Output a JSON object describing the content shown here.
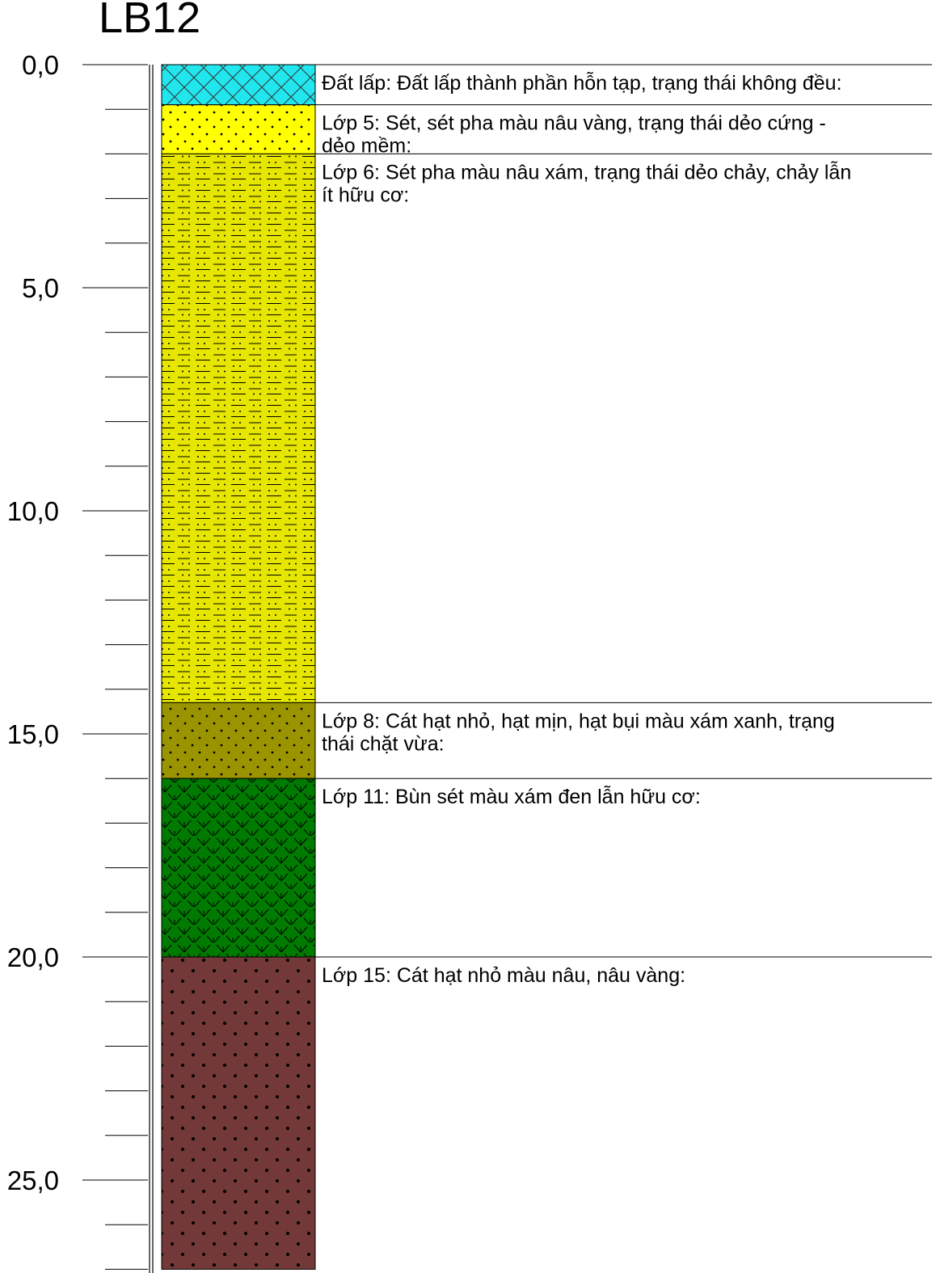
{
  "borehole": {
    "name": "LB12"
  },
  "chart_data": {
    "type": "borehole-log",
    "title": "LB12",
    "depth_unit": "m",
    "depth_range": [
      0,
      27
    ],
    "major_ticks": [
      "0,0",
      "5,0",
      "10,0",
      "15,0",
      "20,0",
      "25,0"
    ],
    "major_tick_values": [
      0,
      5,
      10,
      15,
      20,
      25
    ],
    "minor_tick_step": 1,
    "layers": [
      {
        "top": 0,
        "bottom": 0.9,
        "lines": [
          "Đất lấp: Đất lấp thành phần hỗn tạp, trạng thái không đều:"
        ],
        "color": "#22e6ee",
        "pattern": "crosshatch"
      },
      {
        "top": 0.9,
        "bottom": 2.0,
        "lines": [
          "Lớp 5: Sét, sét pha màu nâu vàng, trạng thái dẻo cứng -",
          "dẻo mềm:"
        ],
        "color": "#ffff00",
        "pattern": "dots"
      },
      {
        "top": 2.0,
        "bottom": 14.3,
        "lines": [
          "Lớp 6: Sét pha màu nâu xám, trạng thái dẻo chảy, chảy lẫn",
          "ít hữu cơ:"
        ],
        "color": "#e6e600",
        "pattern": "dash-dots"
      },
      {
        "top": 14.3,
        "bottom": 16.0,
        "lines": [
          "Lớp 8: Cát hạt nhỏ, hạt mịn, hạt bụi màu xám xanh, trạng",
          "thái chặt vừa:"
        ],
        "color": "#9a9400",
        "pattern": "dots"
      },
      {
        "top": 16.0,
        "bottom": 20.0,
        "lines": [
          "Lớp 11: Bùn sét màu xám đen lẫn hữu cơ:"
        ],
        "color": "#007a00",
        "pattern": "marsh"
      },
      {
        "top": 20.0,
        "bottom": 27.0,
        "lines": [
          "Lớp 15: Cát hạt nhỏ màu nâu, nâu vàng:"
        ],
        "color": "#733838",
        "pattern": "dots-sparse"
      }
    ]
  }
}
